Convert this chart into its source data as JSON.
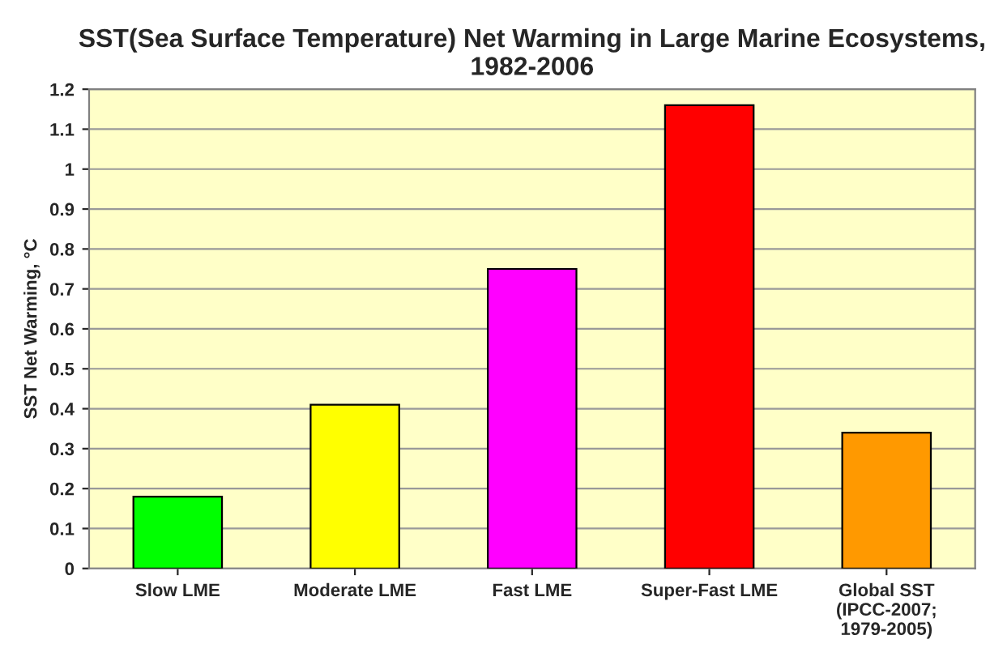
{
  "chart_data": {
    "type": "bar",
    "title": "SST(Sea Surface Temperature) Net Warming in Large Marine Ecosystems, 1982-2006",
    "ylabel": "SST Net Warming, °C",
    "categories": [
      "Slow LME",
      "Moderate LME",
      "Fast LME",
      "Super-Fast LME",
      "Global SST\n(IPCC-2007;\n1979-2005)"
    ],
    "values": [
      0.18,
      0.41,
      0.75,
      1.16,
      0.34
    ],
    "colors": [
      "#00ff00",
      "#ffff00",
      "#ff00ff",
      "#ff0000",
      "#ff9900"
    ],
    "ylim": [
      0,
      1.2
    ],
    "yticks": [
      0,
      0.1,
      0.2,
      0.3,
      0.4,
      0.5,
      0.6,
      0.7,
      0.8,
      0.9,
      1,
      1.1,
      1.2
    ],
    "grid": "y",
    "legend": false
  }
}
